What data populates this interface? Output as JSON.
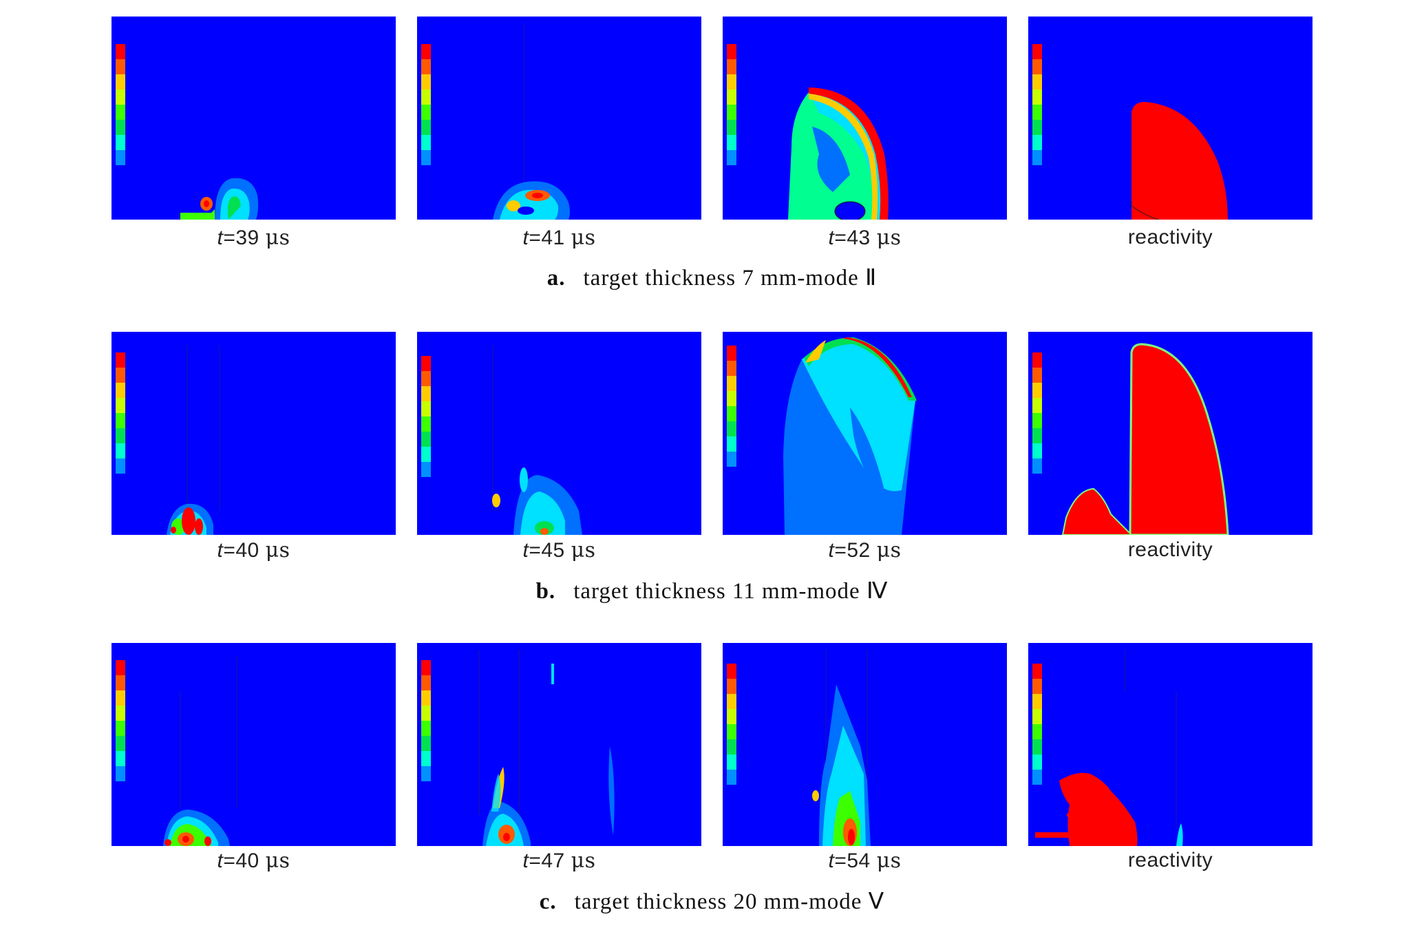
{
  "rows": [
    {
      "caption_letter": "a.",
      "caption_text": "target thickness 7 mm-mode Ⅱ",
      "panels": [
        {
          "t_prefix": "t",
          "t_value": "=39 ",
          "t_unit": "μs"
        },
        {
          "t_prefix": "t",
          "t_value": "=41 ",
          "t_unit": "μs"
        },
        {
          "t_prefix": "t",
          "t_value": "=43 ",
          "t_unit": "μs"
        },
        {
          "label": "reactivity"
        }
      ]
    },
    {
      "caption_letter": "b.",
      "caption_text": "target thickness 11 mm-mode Ⅳ",
      "panels": [
        {
          "t_prefix": "t",
          "t_value": "=40 ",
          "t_unit": "μs"
        },
        {
          "t_prefix": "t",
          "t_value": "=45 ",
          "t_unit": "μs"
        },
        {
          "t_prefix": "t",
          "t_value": "=52 ",
          "t_unit": "μs"
        },
        {
          "label": "reactivity"
        }
      ]
    },
    {
      "caption_letter": "c.",
      "caption_text": "target thickness 20 mm-mode Ⅴ",
      "panels": [
        {
          "t_prefix": "t",
          "t_value": "=40 ",
          "t_unit": "μs"
        },
        {
          "t_prefix": "t",
          "t_value": "=47 ",
          "t_unit": "μs"
        },
        {
          "t_prefix": "t",
          "t_value": "=54 ",
          "t_unit": "μs"
        },
        {
          "label": "reactivity"
        }
      ]
    }
  ],
  "colors": {
    "background_field": "#0000ff",
    "contour_scale": [
      "#ff0000",
      "#ff5a00",
      "#ffaa00",
      "#ffff00",
      "#9bff00",
      "#00e050",
      "#00ffb4",
      "#00e0ff",
      "#0070ff",
      "#0000ff"
    ],
    "reactivity": "#ff0000"
  }
}
